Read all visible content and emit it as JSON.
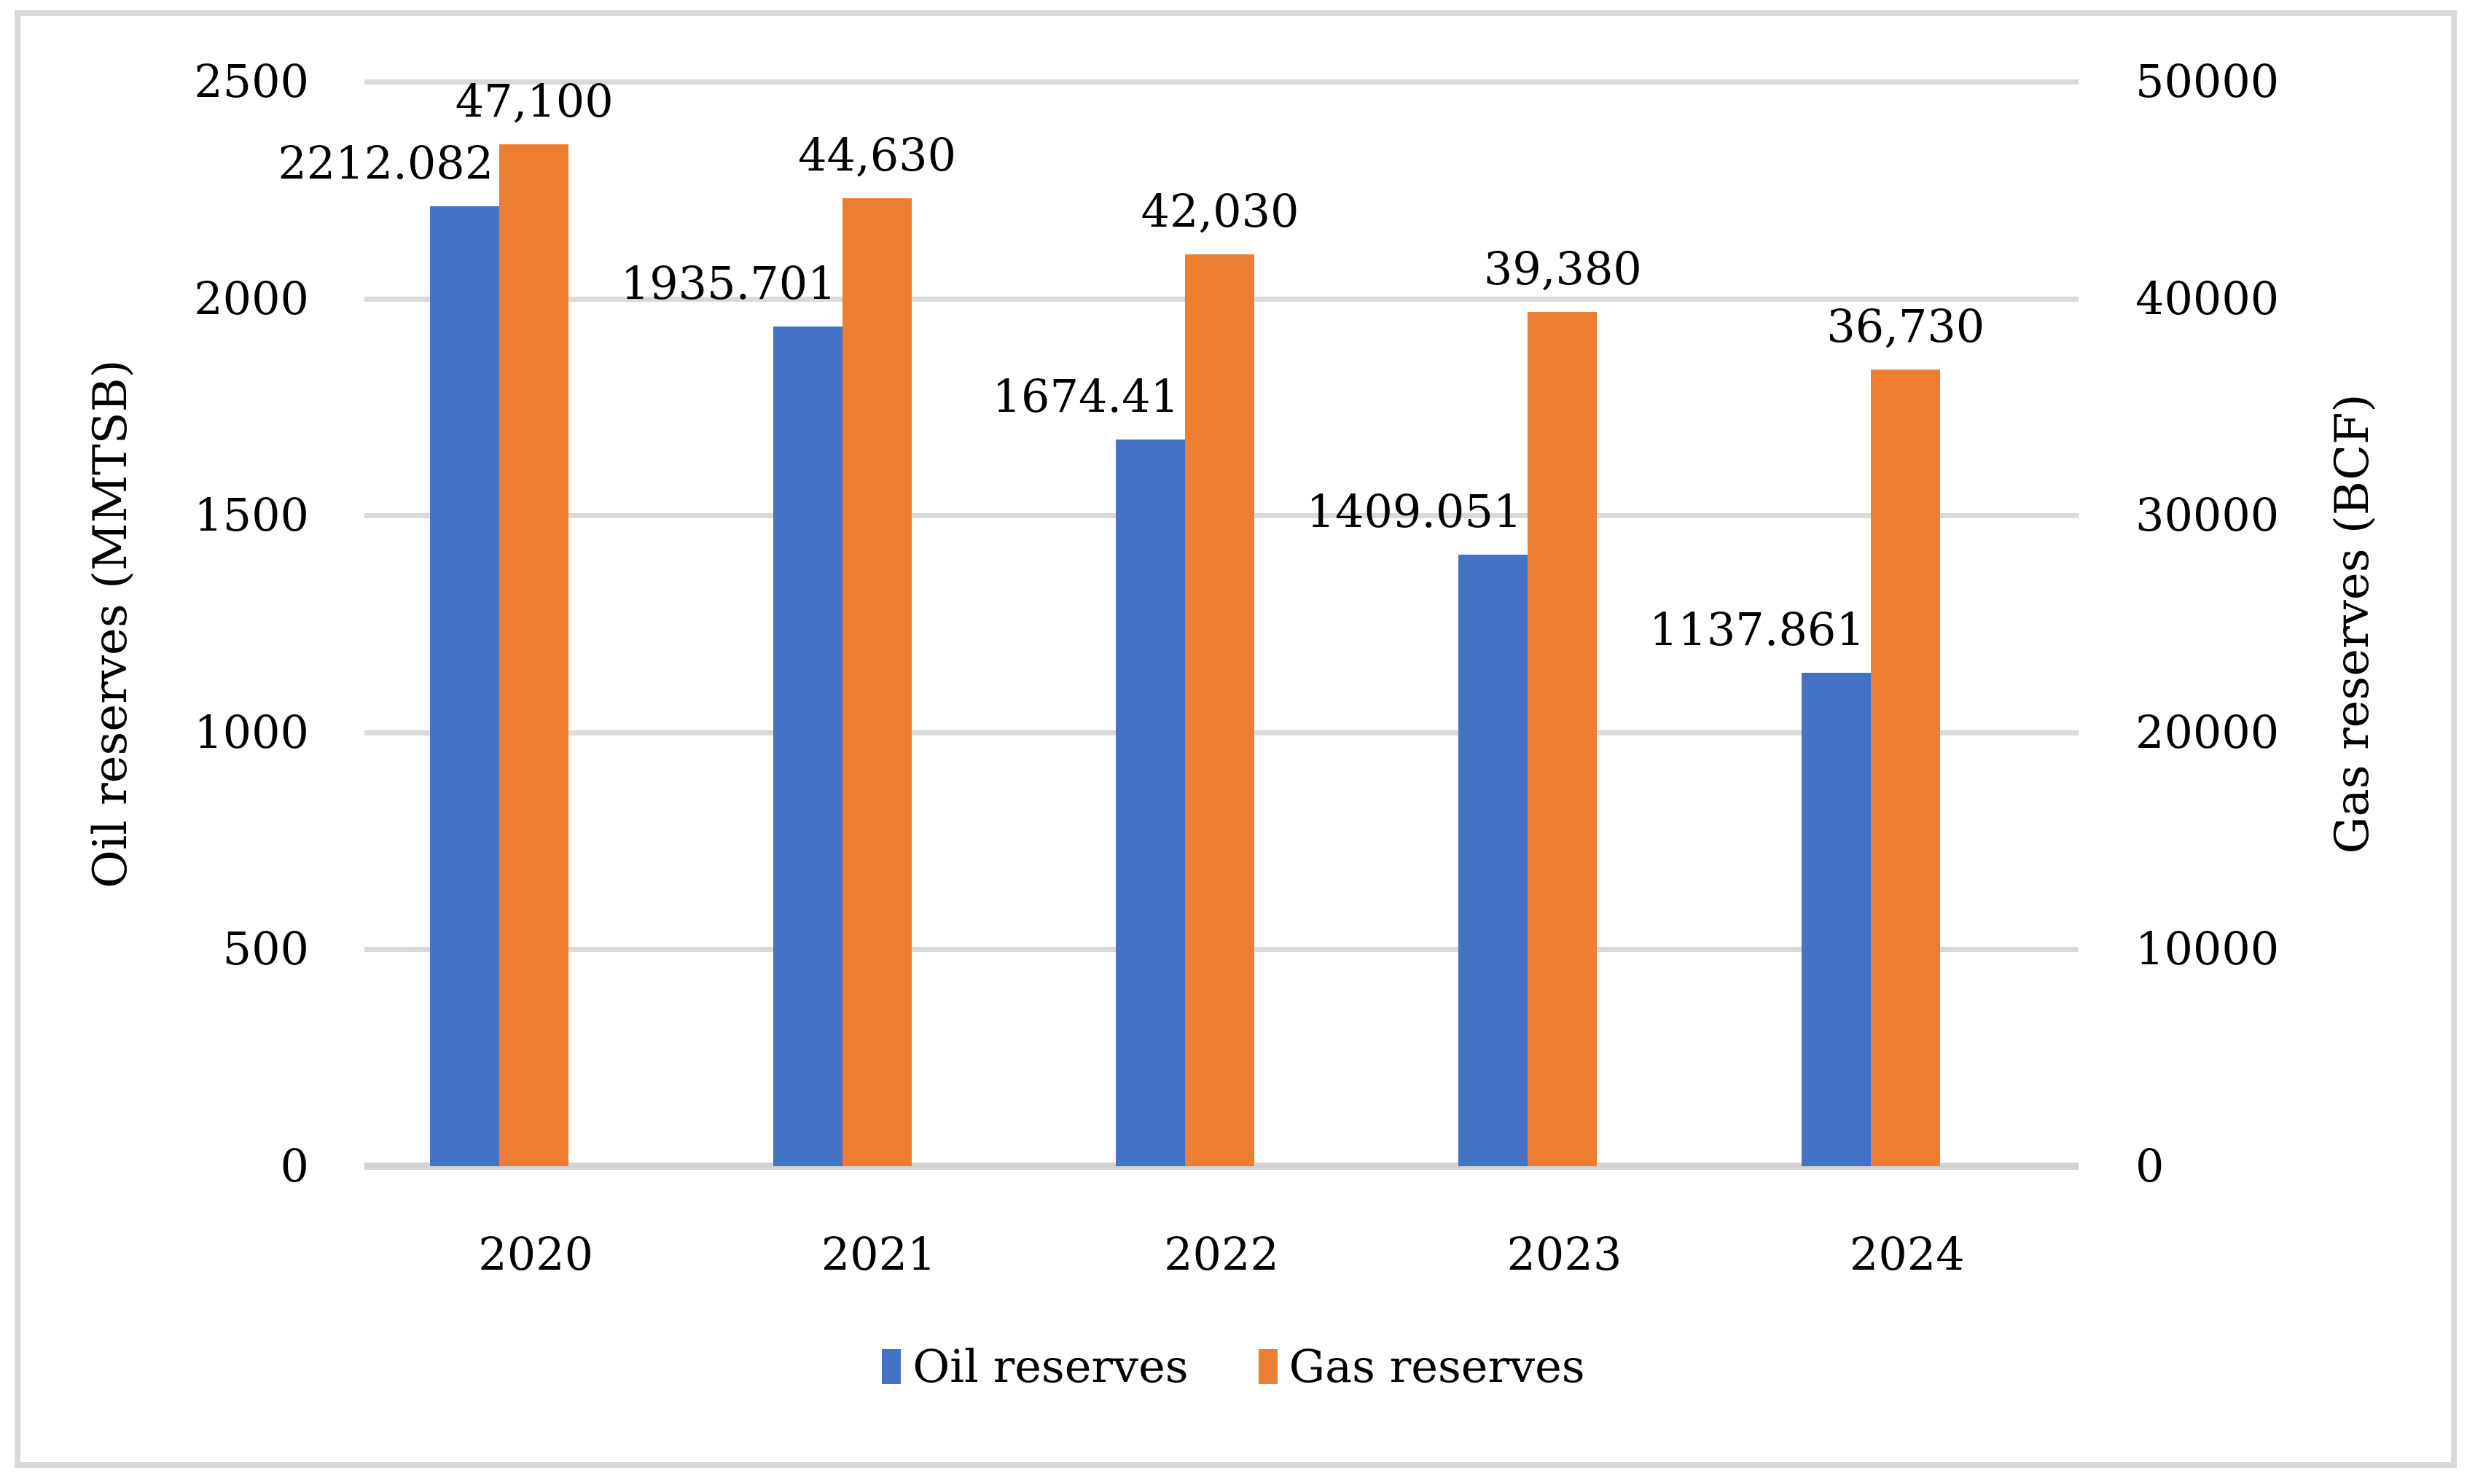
{
  "chart_data": {
    "type": "bar",
    "title": "",
    "categories": [
      "2020",
      "2021",
      "2022",
      "2023",
      "2024"
    ],
    "series": [
      {
        "name": "Oil reserves",
        "axis": "left",
        "color": "#4472C4",
        "values": [
          2212.082,
          1935.701,
          1674.41,
          1409.051,
          1137.861
        ],
        "labels": [
          "2212.082",
          "1935.701",
          "1674.41",
          "1409.051",
          "1137.861"
        ]
      },
      {
        "name": "Gas reserves",
        "axis": "right",
        "color": "#ED7D31",
        "values": [
          47100,
          44630,
          42030,
          39380,
          36730
        ],
        "labels": [
          "47,100",
          "44,630",
          "42,030",
          "39,380",
          "36,730"
        ]
      }
    ],
    "left_axis": {
      "title": "Oil reserves (MMTSB)",
      "min": 0,
      "max": 2500,
      "ticks": [
        "0",
        "500",
        "1000",
        "1500",
        "2000",
        "2500"
      ]
    },
    "right_axis": {
      "title": "Gas reserves (BCF)",
      "min": 0,
      "max": 50000,
      "ticks": [
        "0",
        "10000",
        "20000",
        "30000",
        "40000",
        "50000"
      ]
    },
    "grid": true,
    "legend_position": "bottom"
  },
  "colors": {
    "oil_bar": "#4472C4",
    "gas_bar": "#ED7D31",
    "gridline": "#D9D9D9",
    "axis_line": "#D3D3D3",
    "frame_border": "#D9D9D9",
    "text": "#000000",
    "background": "#FFFFFF"
  }
}
